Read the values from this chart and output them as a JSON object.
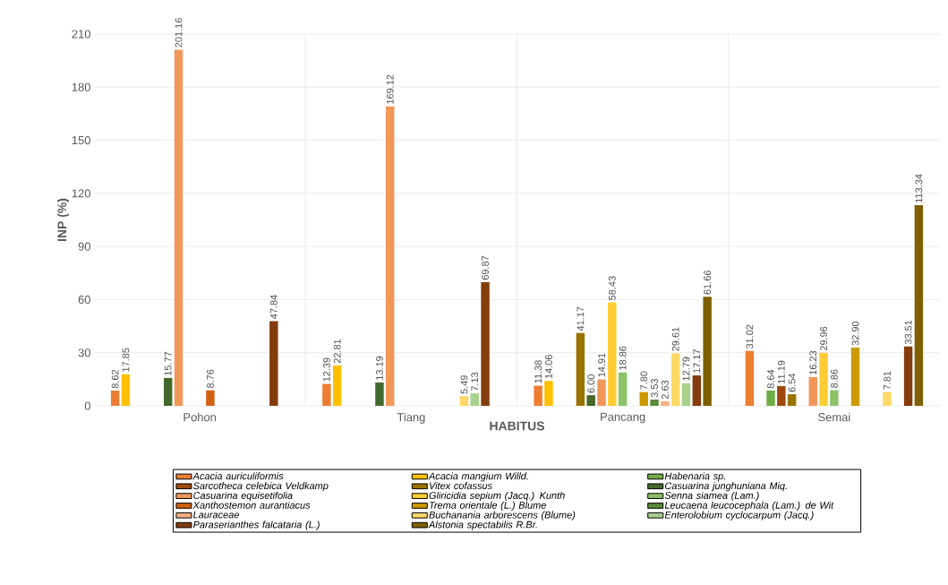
{
  "chart_data": {
    "type": "bar",
    "xlabel": "HABITUS",
    "ylabel": "INP (%)",
    "categories": [
      "Pohon",
      "Tiang",
      "Pancang",
      "Semai"
    ],
    "ylim": [
      0,
      210
    ],
    "yticks": [
      0,
      30,
      60,
      90,
      120,
      150,
      180,
      210
    ],
    "grid": true,
    "legend": "bottom",
    "data_labels": true,
    "series": [
      {
        "name": "Acacia auriculiformis",
        "color": "#ed7d31",
        "values": [
          8.62,
          12.39,
          11.38,
          31.02
        ],
        "value_labels": [
          "8.62",
          "12.39",
          "11.38",
          "31.02"
        ]
      },
      {
        "name": "Acacia mangium Willd.",
        "color": "#ffc000",
        "values": [
          17.85,
          22.81,
          14.06,
          null
        ],
        "value_labels": [
          "17.85",
          "22.81",
          "14.06",
          null
        ]
      },
      {
        "name": "Habenaria sp.",
        "color": "#70ad47",
        "values": [
          null,
          null,
          null,
          8.64
        ],
        "value_labels": [
          null,
          null,
          null,
          "8.64"
        ]
      },
      {
        "name": "Sarcotheca celebica Veldkamp",
        "color": "#9e480e",
        "values": [
          null,
          null,
          null,
          11.19
        ],
        "value_labels": [
          null,
          null,
          null,
          "11.19"
        ]
      },
      {
        "name": "Vitex cofassus",
        "color": "#997300",
        "values": [
          null,
          null,
          41.17,
          6.54
        ],
        "value_labels": [
          null,
          null,
          "41.17",
          "6.54"
        ]
      },
      {
        "name": "Casuarina junghuniana Miq.",
        "color": "#43682b",
        "values": [
          15.77,
          13.19,
          6.0,
          null
        ],
        "value_labels": [
          "15.77",
          "13.19",
          "6.00",
          null
        ]
      },
      {
        "name": "Casuarina equisetifolia",
        "color": "#f1975a",
        "values": [
          201.16,
          169.12,
          14.91,
          16.23
        ],
        "value_labels": [
          "201.16",
          "169.12",
          "14.91",
          "16.23"
        ]
      },
      {
        "name": "Gliricidia sepium (Jacq.) Kunth",
        "color": "#ffcd33",
        "values": [
          null,
          null,
          58.43,
          29.96
        ],
        "value_labels": [
          null,
          null,
          "58.43",
          "29.96"
        ]
      },
      {
        "name": "Senna siamea (Lam.)",
        "color": "#8cc168",
        "values": [
          null,
          null,
          18.86,
          8.86
        ],
        "value_labels": [
          null,
          null,
          "18.86",
          "8.86"
        ]
      },
      {
        "name": "Xanthostemon aurantiacus",
        "color": "#d26012",
        "values": [
          8.76,
          null,
          null,
          null
        ],
        "value_labels": [
          "8.76",
          null,
          null,
          null
        ]
      },
      {
        "name": "Trema orientale (L.) Blume",
        "color": "#cc9a00",
        "values": [
          null,
          null,
          7.8,
          32.9
        ],
        "value_labels": [
          null,
          null,
          "7.80",
          "32.90"
        ]
      },
      {
        "name": "Leucaena leucocephala (Lam.) de Wit",
        "color": "#5a8a39",
        "values": [
          null,
          null,
          3.53,
          null
        ],
        "value_labels": [
          null,
          null,
          "3.53",
          null
        ]
      },
      {
        "name": "Lauraceae",
        "color": "#f4b183",
        "values": [
          null,
          null,
          2.63,
          null
        ],
        "value_labels": [
          null,
          null,
          "2.63",
          null
        ]
      },
      {
        "name": "Buchanania arborescens (Blume)",
        "color": "#ffd966",
        "values": [
          null,
          5.49,
          29.61,
          7.81
        ],
        "value_labels": [
          null,
          "5.49",
          "29.61",
          "7.81"
        ]
      },
      {
        "name": "Enterolobium cyclocarpum (Jacq.)",
        "color": "#a9d18e",
        "values": [
          null,
          7.13,
          12.79,
          null
        ],
        "value_labels": [
          null,
          "7.13",
          "12.79",
          null
        ]
      },
      {
        "name": "Paraserianthes falcataria (L.)",
        "color": "#843c0c",
        "values": [
          47.84,
          69.87,
          17.17,
          33.51
        ],
        "value_labels": [
          "47.84",
          "69.87",
          "17.17",
          "33.51"
        ]
      },
      {
        "name": "Alstonia spectabilis R.Br.",
        "color": "#7f6000",
        "values": [
          null,
          null,
          61.66,
          113.34
        ],
        "value_labels": [
          null,
          null,
          "61.66",
          "113.34"
        ]
      }
    ]
  }
}
